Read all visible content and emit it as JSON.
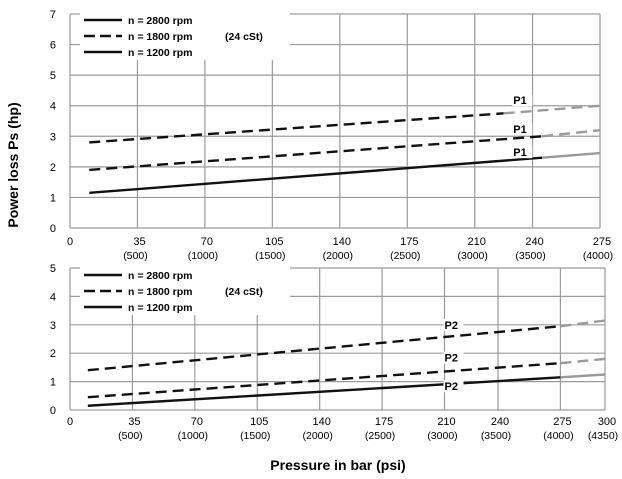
{
  "chart_data": [
    {
      "type": "line",
      "title": "",
      "ylabel": "Power loss Ps (hp)",
      "xlim": [
        0,
        275
      ],
      "ylim": [
        0,
        7
      ],
      "x_ticks": [
        {
          "value": 0,
          "label": "0",
          "sub": ""
        },
        {
          "value": 35,
          "label": "35",
          "sub": "(500)"
        },
        {
          "value": 70,
          "label": "70",
          "sub": "(1000)"
        },
        {
          "value": 105,
          "label": "105",
          "sub": "(1500)"
        },
        {
          "value": 140,
          "label": "140",
          "sub": "(2000)"
        },
        {
          "value": 175,
          "label": "175",
          "sub": "(2500)"
        },
        {
          "value": 210,
          "label": "210",
          "sub": "(3000)"
        },
        {
          "value": 240,
          "label": "240",
          "sub": "(3500)"
        },
        {
          "value": 275,
          "label": "275",
          "sub": "(4000)"
        }
      ],
      "y_ticks": [
        "0",
        "1",
        "2",
        "3",
        "4",
        "5",
        "6",
        "7"
      ],
      "grid": true,
      "legend_note": "(24 cSt)",
      "legend": [
        {
          "label": "n = 2800 rpm",
          "style": "solid"
        },
        {
          "label": "n = 1800 rpm",
          "style": "dashed"
        },
        {
          "label": "n = 1200 rpm",
          "style": "solid"
        }
      ],
      "series": [
        {
          "style": "dashed",
          "points": [
            [
              10,
              2.8
            ],
            [
              225,
              3.75
            ]
          ],
          "extension": [
            [
              225,
              3.75
            ],
            [
              275,
              4.0
            ]
          ],
          "label": "P1",
          "label_at": [
            230,
            4.05
          ]
        },
        {
          "style": "dashed",
          "points": [
            [
              10,
              1.9
            ],
            [
              245,
              3.0
            ]
          ],
          "extension": [
            [
              245,
              3.0
            ],
            [
              275,
              3.2
            ]
          ],
          "label": "P1",
          "label_at": [
            230,
            3.1
          ]
        },
        {
          "style": "solid",
          "points": [
            [
              10,
              1.15
            ],
            [
              245,
              2.3
            ]
          ],
          "extension": [
            [
              245,
              2.3
            ],
            [
              275,
              2.45
            ]
          ],
          "label": "P1",
          "label_at": [
            230,
            2.35
          ]
        }
      ]
    },
    {
      "type": "line",
      "title": "",
      "xlabel": "Pressure in bar (psi)",
      "xlim": [
        0,
        300
      ],
      "ylim": [
        0,
        5
      ],
      "x_ticks": [
        {
          "value": 0,
          "label": "0",
          "sub": ""
        },
        {
          "value": 35,
          "label": "35",
          "sub": "(500)"
        },
        {
          "value": 70,
          "label": "70",
          "sub": "(1000)"
        },
        {
          "value": 105,
          "label": "105",
          "sub": "(1500)"
        },
        {
          "value": 140,
          "label": "140",
          "sub": "(2000)"
        },
        {
          "value": 175,
          "label": "175",
          "sub": "(2500)"
        },
        {
          "value": 210,
          "label": "210",
          "sub": "(3000)"
        },
        {
          "value": 240,
          "label": "240",
          "sub": "(3500)"
        },
        {
          "value": 275,
          "label": "275",
          "sub": "(4000)"
        },
        {
          "value": 300,
          "label": "300",
          "sub": "(4350)"
        }
      ],
      "y_ticks": [
        "0",
        "1",
        "2",
        "3",
        "4",
        "5"
      ],
      "grid": true,
      "legend_note": "(24 cSt)",
      "legend": [
        {
          "label": "n = 2800 rpm",
          "style": "solid"
        },
        {
          "label": "n = 1800 rpm",
          "style": "dashed"
        },
        {
          "label": "n = 1200 rpm",
          "style": "solid"
        }
      ],
      "series": [
        {
          "style": "dashed",
          "points": [
            [
              10,
              1.4
            ],
            [
              275,
              2.95
            ]
          ],
          "extension": [
            [
              275,
              2.95
            ],
            [
              300,
              3.15
            ]
          ],
          "label": "P2",
          "label_at": [
            210,
            2.85
          ]
        },
        {
          "style": "dashed",
          "points": [
            [
              10,
              0.45
            ],
            [
              275,
              1.65
            ]
          ],
          "extension": [
            [
              275,
              1.65
            ],
            [
              300,
              1.8
            ]
          ],
          "label": "P2",
          "label_at": [
            210,
            1.7
          ]
        },
        {
          "style": "solid",
          "points": [
            [
              10,
              0.15
            ],
            [
              275,
              1.15
            ]
          ],
          "extension": [
            [
              275,
              1.15
            ],
            [
              300,
              1.25
            ]
          ],
          "label": "P2",
          "label_at": [
            210,
            0.7
          ]
        }
      ]
    }
  ]
}
